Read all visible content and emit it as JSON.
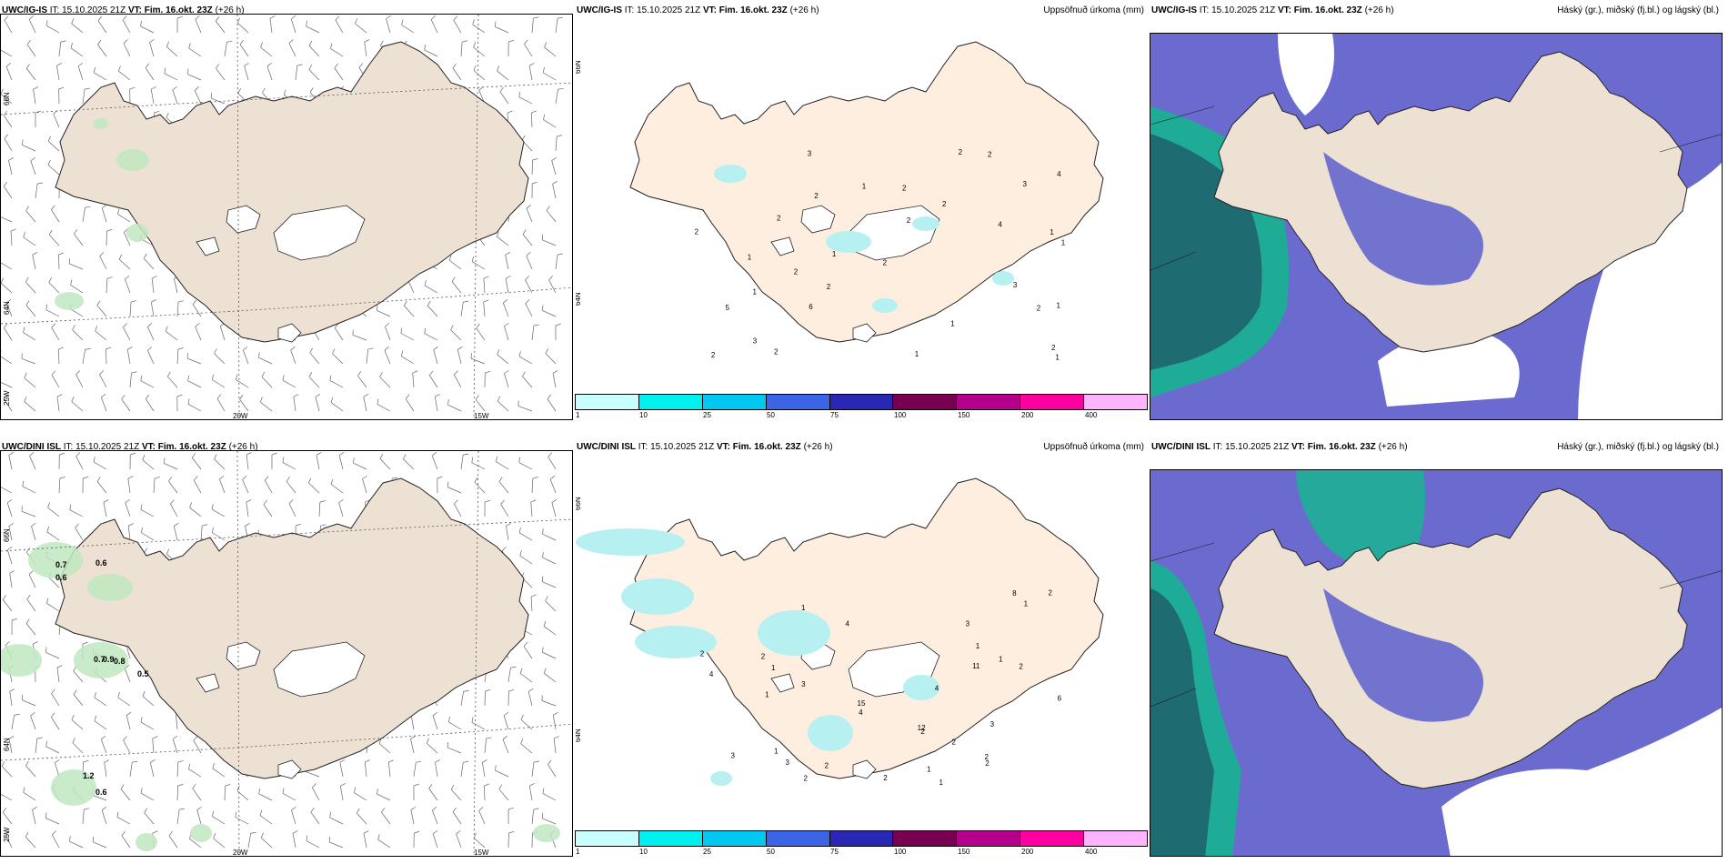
{
  "row_top": {
    "model_left": "UWC/IG-IS",
    "model_mid": "UWC/IG-IS",
    "model_right": "UWC/IG-IS",
    "it_text": "IT: 15.10.2025 21Z",
    "vt_label": "VT:",
    "vt_text": "Fim. 16.okt. 23Z",
    "lead": "(+26 h)"
  },
  "row_bottom": {
    "model_left": "UWC/DINI ISL",
    "model_mid": "UWC/DINI ISL",
    "model_right": "UWC/DINI ISL",
    "it_text": "IT: 15.10.2025 21Z",
    "vt_label": "VT:",
    "vt_text": "Fim. 16.okt. 23Z",
    "lead": "(+26 h)"
  },
  "precip_title": "Uppsöfnuð úrkoma (mm)",
  "cloud_title": "Háský (gr.), miðský (fj.bl.) og lágský (bl.)",
  "axes": {
    "lon_20": "20W",
    "lon_15": "15W",
    "lat_66": "66N",
    "lat_64": "64N",
    "lon_25": "25W"
  },
  "colorbar": {
    "labels": [
      "1",
      "10",
      "25",
      "50",
      "75",
      "100",
      "150",
      "200",
      "400"
    ],
    "colors": [
      "#c8ffff",
      "#00f0f0",
      "#00c8f0",
      "#3c64e6",
      "#2828b4",
      "#780050",
      "#b4008c",
      "#ff00a0",
      "#ffb4ff"
    ]
  },
  "colors": {
    "land_wind": "#ede1d3",
    "land_precip": "#fdeee0",
    "land_cloud": "#ede1d3",
    "cloud_high": "#6b6bcf",
    "cloud_mid": "#17b490",
    "cloud_low": "#1f6b72",
    "precip_light": "#b6f0f0",
    "wind_green": "#bfe8bf"
  },
  "precip_top_values": [
    "2",
    "1",
    "2",
    "1",
    "1",
    "1",
    "2",
    "2",
    "2",
    "3",
    "2",
    "3",
    "4",
    "6",
    "5",
    "2",
    "2",
    "2",
    "3",
    "1",
    "2",
    "2",
    "3",
    "1",
    "2",
    "2",
    "2",
    "1",
    "1",
    "4",
    "2",
    "1",
    "1"
  ],
  "precip_bottom_values": [
    "1",
    "1",
    "1",
    "2",
    "1",
    "1",
    "6",
    "3",
    "4",
    "3",
    "3",
    "2",
    "15",
    "12",
    "11",
    "8",
    "4",
    "1",
    "3",
    "2",
    "2",
    "2",
    "2",
    "2",
    "4",
    "1",
    "1",
    "1",
    "2",
    "4",
    "2",
    "2",
    "3",
    "2"
  ],
  "wind_bottom_values": [
    "0.7",
    "0.6",
    "0.6",
    "0.7",
    "0.9",
    "0.8",
    "0.5",
    "1.2",
    "0.6"
  ]
}
